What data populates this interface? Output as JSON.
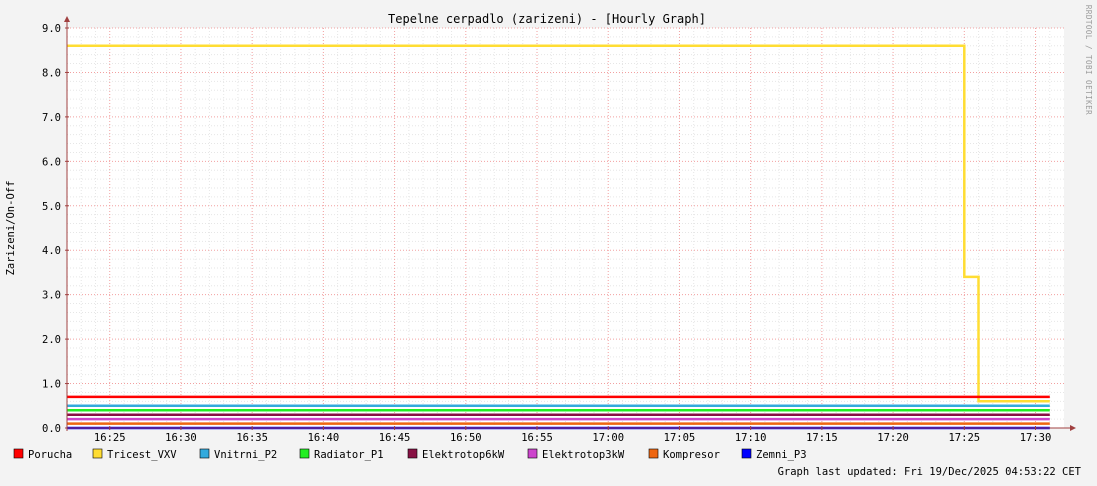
{
  "chart_data": {
    "type": "line",
    "title": "Tepelne cerpadlo (zarizeni) - [Hourly Graph]",
    "ylabel": "Zarizeni/On-Off",
    "xlabel": "",
    "watermark": "RRDTOOL / TOBI OETIKER",
    "ylim": [
      0,
      9
    ],
    "yticks": [
      "0.0",
      "1.0",
      "2.0",
      "3.0",
      "4.0",
      "5.0",
      "6.0",
      "7.0",
      "8.0",
      "9.0"
    ],
    "xlim_minutes": [
      982,
      1052
    ],
    "xticks": [
      "16:25",
      "16:30",
      "16:35",
      "16:40",
      "16:45",
      "16:50",
      "16:55",
      "17:00",
      "17:05",
      "17:10",
      "17:15",
      "17:20",
      "17:25",
      "17:30"
    ],
    "grid": true,
    "legend_position": "bottom",
    "series": [
      {
        "name": "Porucha",
        "color": "#ff0000",
        "points": [
          [
            "16:22",
            0.7
          ],
          [
            "17:31",
            0.7
          ]
        ]
      },
      {
        "name": "Tricest_VXV",
        "color": "#ffdd33",
        "points": [
          [
            "16:22",
            8.6
          ],
          [
            "17:25",
            8.6
          ],
          [
            "17:25",
            3.4
          ],
          [
            "17:26",
            3.4
          ],
          [
            "17:26",
            0.6
          ],
          [
            "17:31",
            0.6
          ]
        ]
      },
      {
        "name": "Vnitrni_P2",
        "color": "#33aadd",
        "points": [
          [
            "16:22",
            0.5
          ],
          [
            "17:31",
            0.5
          ]
        ]
      },
      {
        "name": "Radiator_P1",
        "color": "#22ee22",
        "points": [
          [
            "16:22",
            0.4
          ],
          [
            "17:31",
            0.4
          ]
        ]
      },
      {
        "name": "Elektrotop6kW",
        "color": "#881144",
        "points": [
          [
            "16:22",
            0.3
          ],
          [
            "17:31",
            0.3
          ]
        ]
      },
      {
        "name": "Elektrotop3kW",
        "color": "#cc44cc",
        "points": [
          [
            "16:22",
            0.2
          ],
          [
            "17:31",
            0.2
          ]
        ]
      },
      {
        "name": "Kompresor",
        "color": "#ee6611",
        "points": [
          [
            "16:22",
            0.1
          ],
          [
            "17:31",
            0.1
          ]
        ]
      },
      {
        "name": "Zemni_P3",
        "color": "#0000ff",
        "points": [
          [
            "16:22",
            0.0
          ],
          [
            "17:31",
            0.0
          ]
        ]
      }
    ],
    "footer": "Graph last updated: Fri 19/Dec/2025 04:53:22 CET"
  }
}
